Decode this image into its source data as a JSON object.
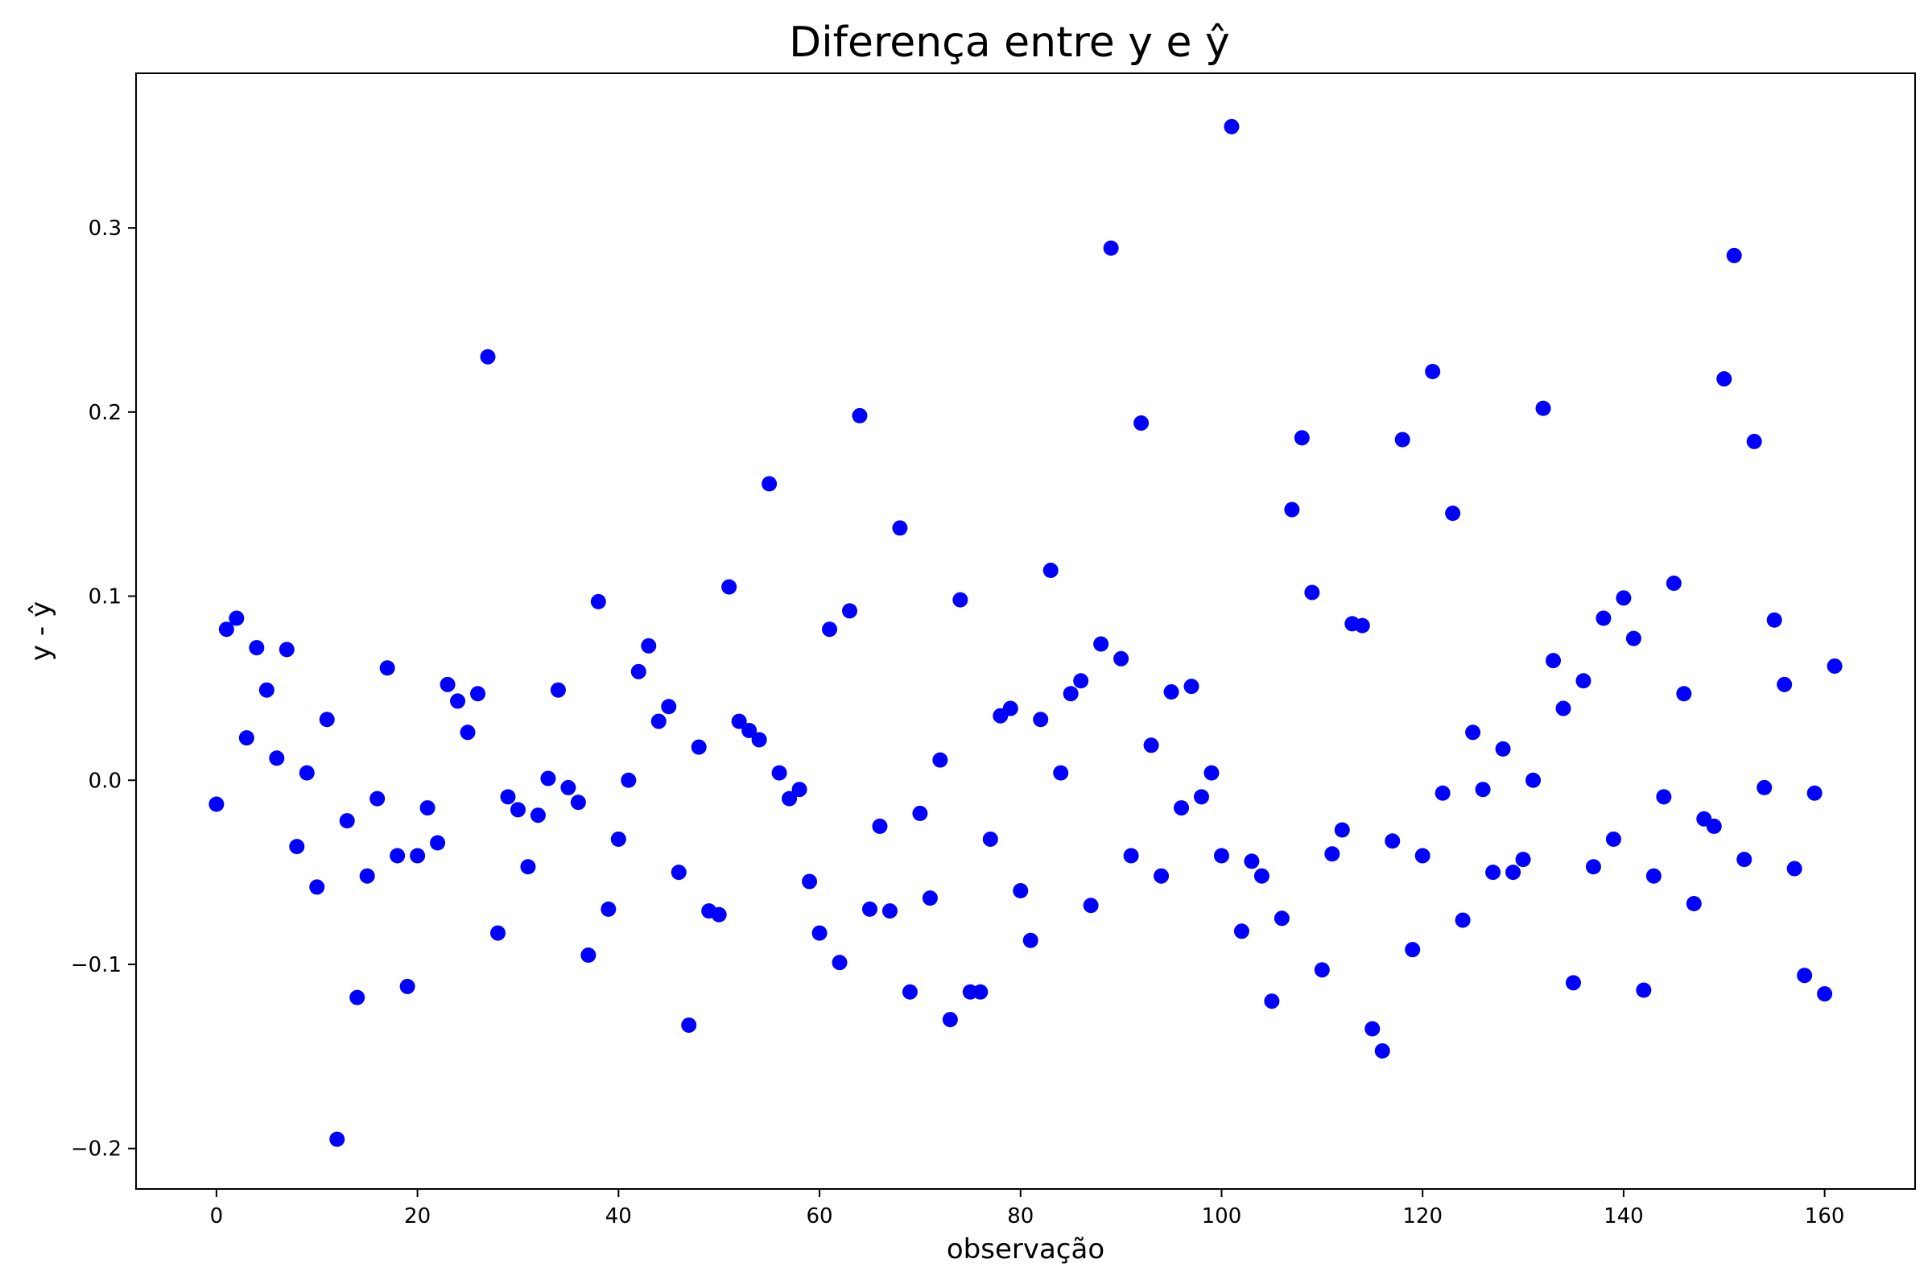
{
  "chart_data": {
    "type": "scatter",
    "title": "Diferença entre y e ŷ",
    "xlabel": "observação",
    "ylabel": "y - ŷ",
    "xlim": [
      -8,
      169
    ],
    "ylim": [
      -0.222,
      0.384
    ],
    "x_ticks": [
      0,
      20,
      40,
      60,
      80,
      100,
      120,
      140,
      160
    ],
    "x_tick_labels": [
      "0",
      "20",
      "40",
      "60",
      "80",
      "100",
      "120",
      "140",
      "160"
    ],
    "y_ticks": [
      -0.2,
      -0.1,
      0.0,
      0.1,
      0.2,
      0.3
    ],
    "y_tick_labels": [
      "−0.2",
      "−0.1",
      "0.0",
      "0.1",
      "0.2",
      "0.3"
    ],
    "grid": false,
    "marker_color": "#0000ff",
    "series": [
      {
        "x": [
          0,
          1,
          2,
          3,
          4,
          5,
          6,
          7,
          8,
          9,
          10,
          11,
          12,
          13,
          14,
          15,
          16,
          17,
          18,
          19,
          20,
          21,
          22,
          23,
          24,
          25,
          26,
          27,
          28,
          29,
          30,
          31,
          32,
          33,
          34,
          35,
          36,
          37,
          38,
          39,
          40,
          41,
          42,
          43,
          44,
          45,
          46,
          47,
          48,
          49,
          50,
          51,
          52,
          53,
          54,
          55,
          56,
          57,
          58,
          59,
          60,
          61,
          62,
          63,
          64,
          65,
          66,
          67,
          68,
          69,
          70,
          71,
          72,
          73,
          74,
          75,
          76,
          77,
          78,
          79,
          80,
          81,
          82,
          83,
          84,
          85,
          86,
          87,
          88,
          89,
          90,
          91,
          92,
          93,
          94,
          95,
          96,
          97,
          98,
          99,
          100,
          101,
          102,
          103,
          104,
          105,
          106,
          107,
          108,
          109,
          110,
          111,
          112,
          113,
          114,
          115,
          116,
          117,
          118,
          119,
          120,
          121,
          122,
          123,
          124,
          125,
          126,
          127,
          128,
          129,
          130,
          131,
          132,
          133,
          134,
          135,
          136,
          137,
          138,
          139,
          140,
          141,
          142,
          143,
          144,
          145,
          146,
          147,
          148,
          149,
          150,
          151,
          152,
          153,
          154,
          155,
          156,
          157,
          158,
          159,
          160,
          161
        ],
        "y": [
          -0.013,
          0.082,
          0.088,
          0.023,
          0.072,
          0.049,
          0.012,
          0.071,
          -0.036,
          0.004,
          -0.058,
          0.033,
          -0.195,
          -0.022,
          -0.118,
          -0.052,
          -0.01,
          0.061,
          -0.041,
          -0.112,
          -0.041,
          -0.015,
          -0.034,
          0.052,
          0.043,
          0.026,
          0.047,
          0.23,
          -0.083,
          -0.009,
          -0.016,
          -0.047,
          -0.019,
          0.001,
          0.049,
          -0.004,
          -0.012,
          -0.095,
          0.097,
          -0.07,
          -0.032,
          0.0,
          0.059,
          0.073,
          0.032,
          0.04,
          -0.05,
          -0.133,
          0.018,
          -0.071,
          -0.073,
          0.105,
          0.032,
          0.027,
          0.022,
          0.161,
          0.004,
          -0.01,
          -0.005,
          -0.055,
          -0.083,
          0.082,
          -0.099,
          0.092,
          0.198,
          -0.07,
          -0.025,
          -0.071,
          0.137,
          -0.115,
          -0.018,
          -0.064,
          0.011,
          -0.13,
          0.098,
          -0.115,
          -0.115,
          -0.032,
          0.035,
          0.039,
          -0.06,
          -0.087,
          0.033,
          0.114,
          0.004,
          0.047,
          0.054,
          -0.068,
          0.074,
          0.289,
          0.066,
          -0.041,
          0.194,
          0.019,
          -0.052,
          0.048,
          -0.015,
          0.051,
          -0.009,
          0.004,
          -0.041,
          0.355,
          -0.082,
          -0.044,
          -0.052,
          -0.12,
          -0.075,
          0.147,
          0.186,
          0.102,
          -0.103,
          -0.04,
          -0.027,
          0.085,
          0.084,
          -0.135,
          -0.147,
          -0.033,
          0.185,
          -0.092,
          -0.041,
          0.222,
          -0.007,
          0.145,
          -0.076,
          0.026,
          -0.005,
          -0.05,
          0.017,
          -0.05,
          -0.043,
          0.0,
          0.202,
          0.065,
          0.039,
          -0.11,
          0.054,
          -0.047,
          0.088,
          -0.032,
          0.099,
          0.077,
          -0.114,
          -0.052,
          -0.009,
          0.107,
          0.047,
          -0.067,
          -0.021,
          -0.025,
          0.218,
          0.285,
          -0.043,
          0.184,
          -0.004,
          0.087,
          0.052,
          -0.048,
          -0.106,
          -0.007,
          -0.116,
          0.062
        ]
      }
    ]
  }
}
